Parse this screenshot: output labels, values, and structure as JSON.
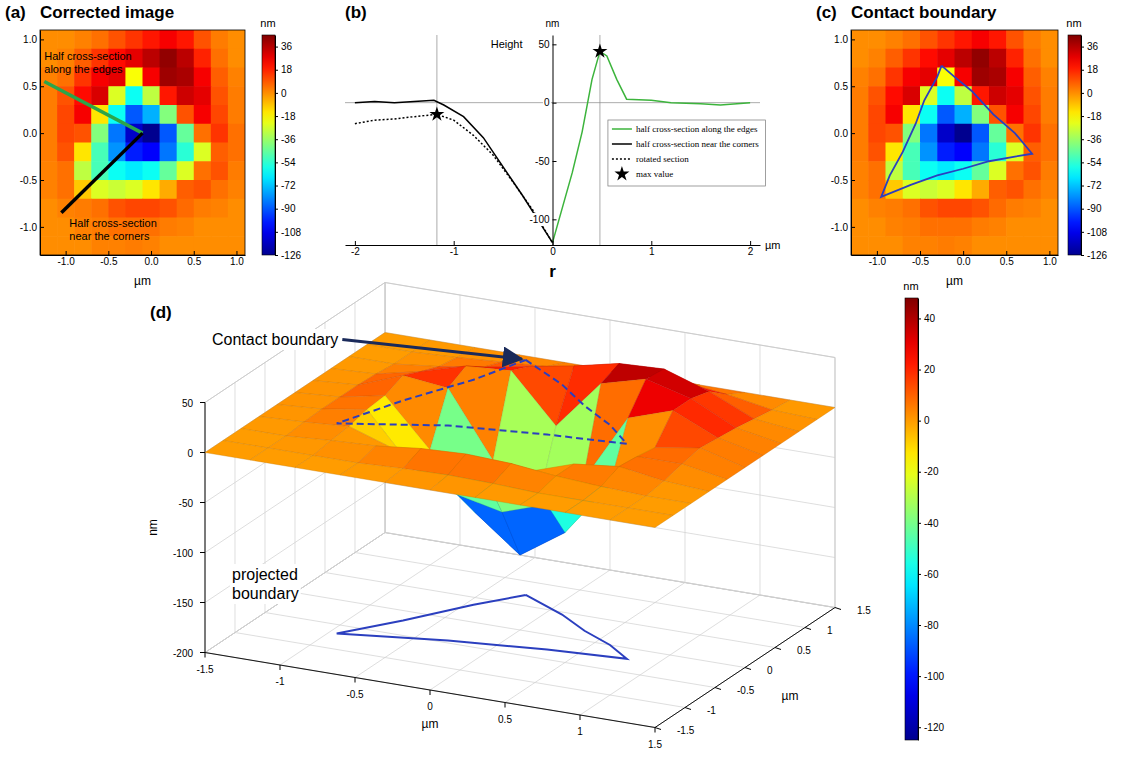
{
  "chart_data": [
    {
      "type": "heatmap",
      "panel_label": "(a)",
      "title": "Corrected image",
      "xlabel": "µm",
      "xlim": [
        -1.3,
        1.1
      ],
      "ylim": [
        -1.3,
        1.1
      ],
      "xticks": [
        {
          "value": -1,
          "label": "-1.0"
        },
        -0.5,
        {
          "value": 0,
          "label": "0.0"
        },
        0.5,
        {
          "value": 1,
          "label": "1.0"
        }
      ],
      "yticks": [
        {
          "value": -1,
          "label": "-1.0"
        },
        -0.5,
        {
          "value": 0,
          "label": "0.0"
        },
        0.5,
        {
          "value": 1,
          "label": "1.0"
        }
      ],
      "x": [
        -1.2,
        -1.0,
        -0.8,
        -0.6,
        -0.4,
        -0.2,
        0.0,
        0.2,
        0.4,
        0.6,
        0.8,
        1.0
      ],
      "y": [
        1.0,
        0.8,
        0.6,
        0.4,
        0.2,
        0.0,
        -0.2,
        -0.4,
        -0.6,
        -0.8,
        -1.0,
        -1.2
      ],
      "z": [
        [
          0,
          0,
          2,
          5,
          10,
          15,
          20,
          25,
          20,
          10,
          3,
          0
        ],
        [
          0,
          2,
          8,
          15,
          22,
          28,
          35,
          42,
          35,
          18,
          5,
          0
        ],
        [
          2,
          5,
          15,
          25,
          28,
          -20,
          25,
          40,
          38,
          25,
          8,
          2
        ],
        [
          3,
          10,
          22,
          30,
          -25,
          -60,
          -30,
          20,
          32,
          28,
          10,
          3
        ],
        [
          3,
          12,
          25,
          -15,
          -60,
          -90,
          -75,
          -40,
          10,
          25,
          12,
          3
        ],
        [
          3,
          12,
          10,
          -40,
          -85,
          -115,
          -126,
          -90,
          -45,
          5,
          15,
          5
        ],
        [
          3,
          10,
          -15,
          -50,
          -80,
          -100,
          -105,
          -85,
          -55,
          -25,
          8,
          5
        ],
        [
          2,
          5,
          -30,
          -50,
          -60,
          -65,
          -60,
          -45,
          -25,
          5,
          10,
          3
        ],
        [
          2,
          5,
          -10,
          -25,
          -28,
          -25,
          -15,
          -5,
          8,
          10,
          5,
          2
        ],
        [
          0,
          2,
          3,
          5,
          10,
          12,
          12,
          10,
          6,
          3,
          2,
          0
        ],
        [
          0,
          0,
          2,
          3,
          5,
          5,
          5,
          3,
          2,
          0,
          0,
          0
        ],
        [
          0,
          0,
          0,
          2,
          2,
          3,
          2,
          0,
          0,
          0,
          0,
          0
        ]
      ],
      "colorbar": {
        "label": "nm",
        "range": [
          -126,
          45
        ],
        "ticks": [
          36,
          18,
          0,
          -18,
          -36,
          -54,
          -72,
          -90,
          -108,
          -126
        ]
      },
      "annotations": [
        {
          "text": "Half cross-section along the edges",
          "color": "#2ca54a",
          "x": [
            -1.25,
            -0.1
          ],
          "y": [
            0.55,
            0.0
          ]
        },
        {
          "text": "Half cross-section near the corners",
          "color": "#000000",
          "x": [
            -1.05,
            -0.1
          ],
          "y": [
            -0.85,
            0.0
          ]
        }
      ]
    },
    {
      "type": "line",
      "panel_label": "(b)",
      "xlabel": "µm",
      "ylabel": "nm",
      "annotations": [
        {
          "text": "Height"
        },
        {
          "text": "r"
        }
      ],
      "xlim": [
        -2.1,
        2.1
      ],
      "ylim": [
        -122,
        58
      ],
      "xticks": [
        -2,
        -1,
        0,
        1,
        2
      ],
      "yticks": [
        50,
        0,
        -50,
        -100
      ],
      "reference_lines": {
        "x": [
          -1.17,
          0.48
        ],
        "y": [
          0
        ]
      },
      "legend": "lower right",
      "series": [
        {
          "name": "half cross-section along the edges",
          "color": "#3cb43c",
          "line_style": "solid",
          "x": [
            0,
            0.1,
            0.2,
            0.3,
            0.4,
            0.48,
            0.55,
            0.65,
            0.75,
            1.0,
            1.2,
            1.5,
            1.7,
            2.0
          ],
          "values": [
            -120,
            -90,
            -60,
            -25,
            20,
            44,
            40,
            20,
            3,
            2,
            0,
            -1,
            -2,
            0
          ]
        },
        {
          "name": "half cross-section near the corners",
          "color": "#000000",
          "line_style": "solid",
          "x": [
            -2,
            -1.8,
            -1.6,
            -1.4,
            -1.2,
            -1.1,
            -0.9,
            -0.7,
            -0.5,
            -0.3,
            -0.15,
            0
          ],
          "values": [
            0,
            1,
            0,
            1,
            2,
            -2,
            -12,
            -30,
            -55,
            -80,
            -100,
            -120
          ]
        },
        {
          "name": "rotated section",
          "color": "#000000",
          "line_style": "dotted",
          "x": [
            -2,
            -1.8,
            -1.6,
            -1.4,
            -1.17,
            -1.0,
            -0.8,
            -0.6,
            -0.4,
            -0.2,
            0
          ],
          "values": [
            -18,
            -15,
            -14,
            -12,
            -10,
            -15,
            -28,
            -45,
            -68,
            -92,
            -120
          ]
        },
        {
          "name": "max value",
          "type": "scatter",
          "marker": "star",
          "color": "#000000",
          "x": [
            -1.17,
            0.48
          ],
          "values": [
            -10,
            44
          ]
        }
      ]
    },
    {
      "type": "heatmap",
      "panel_label": "(c)",
      "title": "Contact boundary",
      "xlabel": "µm",
      "xlim": [
        -1.3,
        1.1
      ],
      "ylim": [
        -1.3,
        1.1
      ],
      "xticks": [
        {
          "value": -1,
          "label": "-1.0"
        },
        -0.5,
        {
          "value": 0,
          "label": "0.0"
        },
        0.5,
        {
          "value": 1,
          "label": "1.0"
        }
      ],
      "yticks": [
        {
          "value": -1,
          "label": "-1.0"
        },
        -0.5,
        {
          "value": 0,
          "label": "0.0"
        },
        0.5,
        {
          "value": 1,
          "label": "1.0"
        }
      ],
      "x": [
        -1.2,
        -1.0,
        -0.8,
        -0.6,
        -0.4,
        -0.2,
        0.0,
        0.2,
        0.4,
        0.6,
        0.8,
        1.0
      ],
      "y": [
        1.0,
        0.8,
        0.6,
        0.4,
        0.2,
        0.0,
        -0.2,
        -0.4,
        -0.6,
        -0.8,
        -1.0,
        -1.2
      ],
      "z": [
        [
          0,
          0,
          2,
          5,
          10,
          15,
          20,
          25,
          20,
          10,
          3,
          0
        ],
        [
          0,
          2,
          8,
          15,
          22,
          28,
          35,
          42,
          35,
          18,
          5,
          0
        ],
        [
          2,
          5,
          15,
          25,
          28,
          -20,
          25,
          40,
          38,
          25,
          8,
          2
        ],
        [
          3,
          10,
          22,
          30,
          -25,
          -60,
          -30,
          20,
          32,
          28,
          10,
          3
        ],
        [
          3,
          12,
          25,
          -15,
          -60,
          -90,
          -75,
          -40,
          10,
          25,
          12,
          3
        ],
        [
          3,
          12,
          10,
          -40,
          -85,
          -115,
          -126,
          -90,
          -45,
          5,
          15,
          5
        ],
        [
          3,
          10,
          -15,
          -50,
          -80,
          -100,
          -105,
          -85,
          -55,
          -25,
          8,
          5
        ],
        [
          2,
          5,
          -30,
          -50,
          -60,
          -65,
          -60,
          -45,
          -25,
          5,
          10,
          3
        ],
        [
          2,
          5,
          -10,
          -25,
          -28,
          -25,
          -15,
          -5,
          8,
          10,
          5,
          2
        ],
        [
          0,
          2,
          3,
          5,
          10,
          12,
          12,
          10,
          6,
          3,
          2,
          0
        ],
        [
          0,
          0,
          2,
          3,
          5,
          5,
          5,
          3,
          2,
          0,
          0,
          0
        ],
        [
          0,
          0,
          0,
          2,
          2,
          3,
          2,
          0,
          0,
          0,
          0,
          0
        ]
      ],
      "colorbar": {
        "label": "nm",
        "range": [
          -126,
          45
        ],
        "ticks": [
          36,
          18,
          0,
          -18,
          -36,
          -54,
          -72,
          -90,
          -108,
          -126
        ]
      },
      "boundary": {
        "color": "#2b3fbf",
        "x": [
          -0.25,
          -0.1,
          0.1,
          0.35,
          0.6,
          0.8,
          0.6,
          0.3,
          0.0,
          -0.3,
          -0.6,
          -0.95,
          -0.85,
          -0.7,
          -0.55,
          -0.45,
          -0.3,
          -0.25
        ],
        "y": [
          0.72,
          0.6,
          0.45,
          0.2,
          0.0,
          -0.22,
          -0.25,
          -0.3,
          -0.38,
          -0.45,
          -0.55,
          -0.68,
          -0.45,
          -0.2,
          0.1,
          0.35,
          0.6,
          0.72
        ]
      }
    },
    {
      "type": "surface",
      "panel_label": "(d)",
      "xlabel": "µm",
      "ylabel": "µm",
      "zlabel": "nm",
      "xlim": [
        -1.5,
        1.5
      ],
      "ylim": [
        -1.5,
        1.5
      ],
      "zlim": [
        -200,
        50
      ],
      "xticks": [
        -1.5,
        -1,
        -0.5,
        0,
        0.5,
        1,
        1.5
      ],
      "yticks": [
        -1.5,
        -1,
        -0.5,
        0,
        0.5,
        1,
        1.5
      ],
      "zticks": [
        -200,
        -150,
        -100,
        -50,
        0,
        50
      ],
      "x": [
        -1.5,
        -1.2,
        -0.9,
        -0.6,
        -0.3,
        0,
        0.3,
        0.6,
        0.9,
        1.2,
        1.5
      ],
      "y": [
        -1.5,
        -1.2,
        -0.9,
        -0.6,
        -0.3,
        0,
        0.3,
        0.6,
        0.9,
        1.2,
        1.5
      ],
      "z": [
        [
          0,
          0,
          0,
          0,
          0,
          0,
          0,
          0,
          0,
          0,
          0
        ],
        [
          0,
          0,
          0,
          0,
          2,
          3,
          2,
          0,
          0,
          0,
          0
        ],
        [
          0,
          0,
          3,
          5,
          10,
          12,
          10,
          5,
          2,
          0,
          0
        ],
        [
          0,
          2,
          5,
          -10,
          -25,
          -20,
          -10,
          5,
          10,
          3,
          0
        ],
        [
          0,
          3,
          10,
          -40,
          -60,
          -70,
          -55,
          -30,
          8,
          8,
          0
        ],
        [
          0,
          3,
          12,
          -35,
          -90,
          -125,
          -95,
          -40,
          5,
          12,
          0
        ],
        [
          0,
          3,
          20,
          15,
          -50,
          -85,
          -55,
          15,
          30,
          10,
          0
        ],
        [
          0,
          2,
          12,
          25,
          28,
          -20,
          30,
          42,
          30,
          8,
          0
        ],
        [
          0,
          0,
          5,
          12,
          20,
          28,
          38,
          40,
          25,
          5,
          0
        ],
        [
          0,
          0,
          2,
          5,
          8,
          12,
          15,
          15,
          10,
          2,
          0
        ],
        [
          0,
          0,
          0,
          0,
          0,
          0,
          0,
          0,
          0,
          0,
          0
        ]
      ],
      "colorbar": {
        "label": "nm",
        "range": [
          -125,
          48
        ],
        "ticks": [
          40,
          20,
          0,
          -20,
          -40,
          -60,
          -80,
          -100,
          -120
        ]
      },
      "boundary": {
        "color": "#2b3fbf",
        "x": [
          -0.25,
          0.1,
          0.35,
          0.6,
          0.8,
          0.3,
          -0.3,
          -0.95,
          -0.7,
          -0.45,
          -0.25
        ],
        "y": [
          0.72,
          0.45,
          0.2,
          0.0,
          -0.22,
          -0.3,
          -0.45,
          -0.68,
          -0.2,
          0.35,
          0.72
        ],
        "z": [
          35,
          30,
          25,
          20,
          15,
          15,
          15,
          10,
          20,
          25,
          35
        ]
      },
      "annotations": [
        {
          "text": "Contact boundary"
        },
        {
          "text": "projected boundary"
        }
      ]
    }
  ]
}
